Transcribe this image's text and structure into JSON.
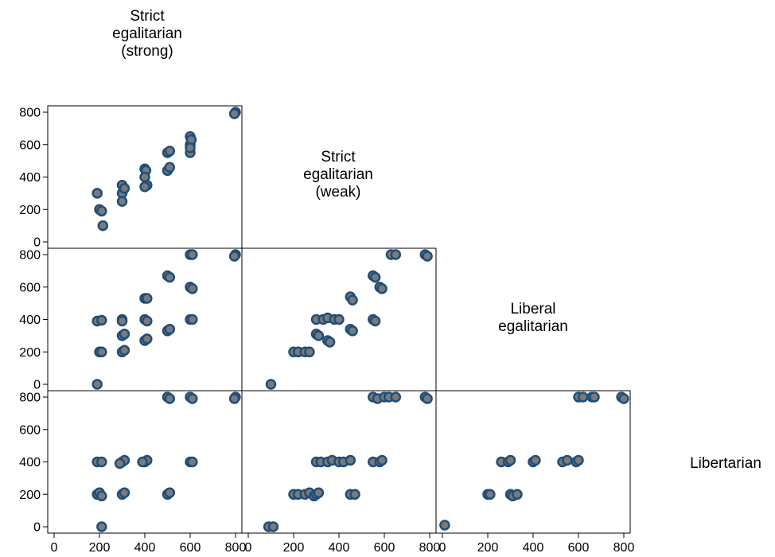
{
  "chart_data": {
    "type": "scatter",
    "variables": [
      [
        "Strict",
        "egalitarian",
        "(strong)"
      ],
      [
        "Strict",
        "egalitarian",
        "(weak)"
      ],
      [
        "Liberal",
        "egalitarian"
      ],
      [
        "Libertarian"
      ]
    ],
    "xlim": [
      0,
      800
    ],
    "ylim": [
      0,
      800
    ],
    "ticks": [
      "0",
      "200",
      "400",
      "600",
      "800"
    ],
    "marker_fill": "#7a7a7a",
    "marker_edge": "#1f4e79",
    "panels": [
      {
        "row": 1,
        "col": 0,
        "points": [
          [
            190,
            300
          ],
          [
            200,
            200
          ],
          [
            210,
            190
          ],
          [
            215,
            100
          ],
          [
            300,
            350
          ],
          [
            300,
            300
          ],
          [
            300,
            250
          ],
          [
            310,
            330
          ],
          [
            400,
            450
          ],
          [
            405,
            440
          ],
          [
            400,
            400
          ],
          [
            410,
            350
          ],
          [
            400,
            340
          ],
          [
            500,
            550
          ],
          [
            510,
            560
          ],
          [
            500,
            440
          ],
          [
            510,
            460
          ],
          [
            600,
            650
          ],
          [
            600,
            600
          ],
          [
            600,
            550
          ],
          [
            605,
            630
          ],
          [
            600,
            580
          ],
          [
            800,
            800
          ],
          [
            795,
            790
          ]
        ]
      },
      {
        "row": 2,
        "col": 0,
        "points": [
          [
            190,
            390
          ],
          [
            210,
            395
          ],
          [
            190,
            0
          ],
          [
            200,
            200
          ],
          [
            210,
            200
          ],
          [
            300,
            400
          ],
          [
            300,
            390
          ],
          [
            300,
            300
          ],
          [
            310,
            310
          ],
          [
            300,
            200
          ],
          [
            310,
            210
          ],
          [
            400,
            530
          ],
          [
            410,
            530
          ],
          [
            400,
            400
          ],
          [
            410,
            390
          ],
          [
            400,
            270
          ],
          [
            410,
            280
          ],
          [
            500,
            670
          ],
          [
            510,
            660
          ],
          [
            500,
            330
          ],
          [
            510,
            340
          ],
          [
            600,
            800
          ],
          [
            610,
            800
          ],
          [
            600,
            600
          ],
          [
            610,
            590
          ],
          [
            600,
            400
          ],
          [
            610,
            400
          ],
          [
            800,
            800
          ],
          [
            795,
            790
          ]
        ]
      },
      {
        "row": 2,
        "col": 1,
        "points": [
          [
            100,
            0
          ],
          [
            200,
            200
          ],
          [
            220,
            200
          ],
          [
            250,
            200
          ],
          [
            270,
            200
          ],
          [
            300,
            400
          ],
          [
            300,
            310
          ],
          [
            310,
            300
          ],
          [
            330,
            400
          ],
          [
            350,
            410
          ],
          [
            350,
            270
          ],
          [
            360,
            260
          ],
          [
            380,
            400
          ],
          [
            400,
            400
          ],
          [
            450,
            540
          ],
          [
            460,
            520
          ],
          [
            450,
            340
          ],
          [
            460,
            330
          ],
          [
            550,
            670
          ],
          [
            560,
            660
          ],
          [
            550,
            400
          ],
          [
            560,
            390
          ],
          [
            580,
            600
          ],
          [
            590,
            590
          ],
          [
            630,
            800
          ],
          [
            650,
            800
          ],
          [
            780,
            800
          ],
          [
            790,
            790
          ]
        ]
      },
      {
        "row": 3,
        "col": 0,
        "points": [
          [
            210,
            0
          ],
          [
            190,
            400
          ],
          [
            210,
            400
          ],
          [
            190,
            200
          ],
          [
            200,
            210
          ],
          [
            210,
            190
          ],
          [
            300,
            400
          ],
          [
            310,
            410
          ],
          [
            290,
            390
          ],
          [
            300,
            200
          ],
          [
            310,
            210
          ],
          [
            400,
            400
          ],
          [
            410,
            410
          ],
          [
            390,
            400
          ],
          [
            500,
            800
          ],
          [
            510,
            790
          ],
          [
            500,
            200
          ],
          [
            510,
            210
          ],
          [
            600,
            800
          ],
          [
            610,
            790
          ],
          [
            600,
            400
          ],
          [
            610,
            400
          ],
          [
            800,
            800
          ],
          [
            795,
            790
          ]
        ]
      },
      {
        "row": 3,
        "col": 1,
        "points": [
          [
            90,
            0
          ],
          [
            110,
            0
          ],
          [
            200,
            200
          ],
          [
            220,
            200
          ],
          [
            250,
            200
          ],
          [
            270,
            210
          ],
          [
            290,
            190
          ],
          [
            300,
            200
          ],
          [
            310,
            210
          ],
          [
            300,
            400
          ],
          [
            320,
            400
          ],
          [
            350,
            400
          ],
          [
            370,
            410
          ],
          [
            400,
            400
          ],
          [
            420,
            400
          ],
          [
            450,
            410
          ],
          [
            450,
            200
          ],
          [
            470,
            200
          ],
          [
            550,
            800
          ],
          [
            570,
            790
          ],
          [
            550,
            400
          ],
          [
            580,
            400
          ],
          [
            590,
            410
          ],
          [
            600,
            800
          ],
          [
            620,
            800
          ],
          [
            650,
            800
          ],
          [
            780,
            800
          ],
          [
            790,
            790
          ]
        ]
      },
      {
        "row": 3,
        "col": 2,
        "points": [
          [
            10,
            10
          ],
          [
            200,
            200
          ],
          [
            210,
            200
          ],
          [
            260,
            400
          ],
          [
            290,
            400
          ],
          [
            300,
            410
          ],
          [
            300,
            200
          ],
          [
            310,
            190
          ],
          [
            330,
            200
          ],
          [
            400,
            400
          ],
          [
            410,
            410
          ],
          [
            530,
            400
          ],
          [
            550,
            410
          ],
          [
            590,
            400
          ],
          [
            600,
            410
          ],
          [
            600,
            800
          ],
          [
            620,
            800
          ],
          [
            660,
            800
          ],
          [
            670,
            800
          ],
          [
            790,
            800
          ],
          [
            800,
            790
          ]
        ]
      }
    ]
  }
}
